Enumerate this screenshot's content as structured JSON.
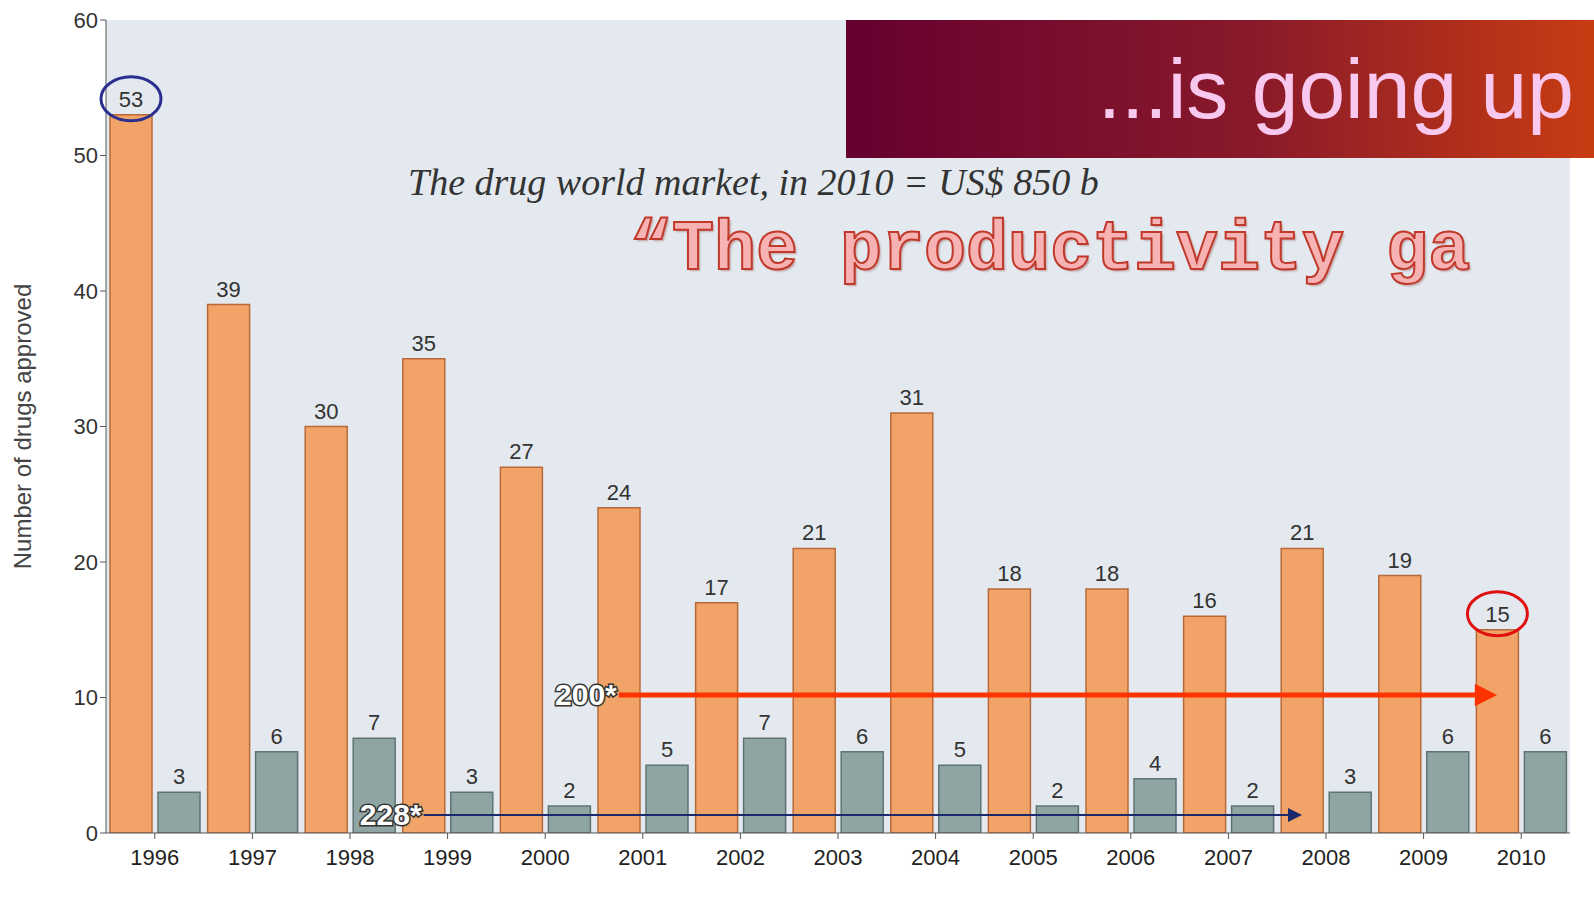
{
  "chart_data": {
    "type": "bar",
    "title": "...is going up",
    "subtitle": "The drug world market, in 2010 = US$ 850 b",
    "annotations": [
      "“The productivity ga"
    ],
    "arrows": [
      {
        "text": "200*",
        "from": "2001",
        "to": "2010"
      },
      {
        "text": "228*",
        "from": "1999",
        "to": "2008"
      }
    ],
    "y_label": "Number of drugs approved",
    "categories": [
      "1996",
      "1997",
      "1998",
      "1999",
      "2000",
      "2001",
      "2002",
      "2003",
      "2004",
      "2005",
      "2006",
      "2007",
      "2008",
      "2009",
      "2010"
    ],
    "series": [
      {
        "color": "#f2a468",
        "values": [
          53,
          39,
          30,
          35,
          27,
          24,
          17,
          21,
          31,
          18,
          18,
          16,
          21,
          19,
          15
        ]
      },
      {
        "color": "#8fa5a3",
        "values": [
          3,
          6,
          7,
          3,
          2,
          5,
          7,
          6,
          5,
          2,
          4,
          2,
          3,
          6,
          6
        ]
      }
    ],
    "ylim": [
      0,
      60
    ],
    "yticks": [
      0,
      10,
      20,
      30,
      40,
      50,
      60
    ],
    "grid": false,
    "data_labels": true
  }
}
